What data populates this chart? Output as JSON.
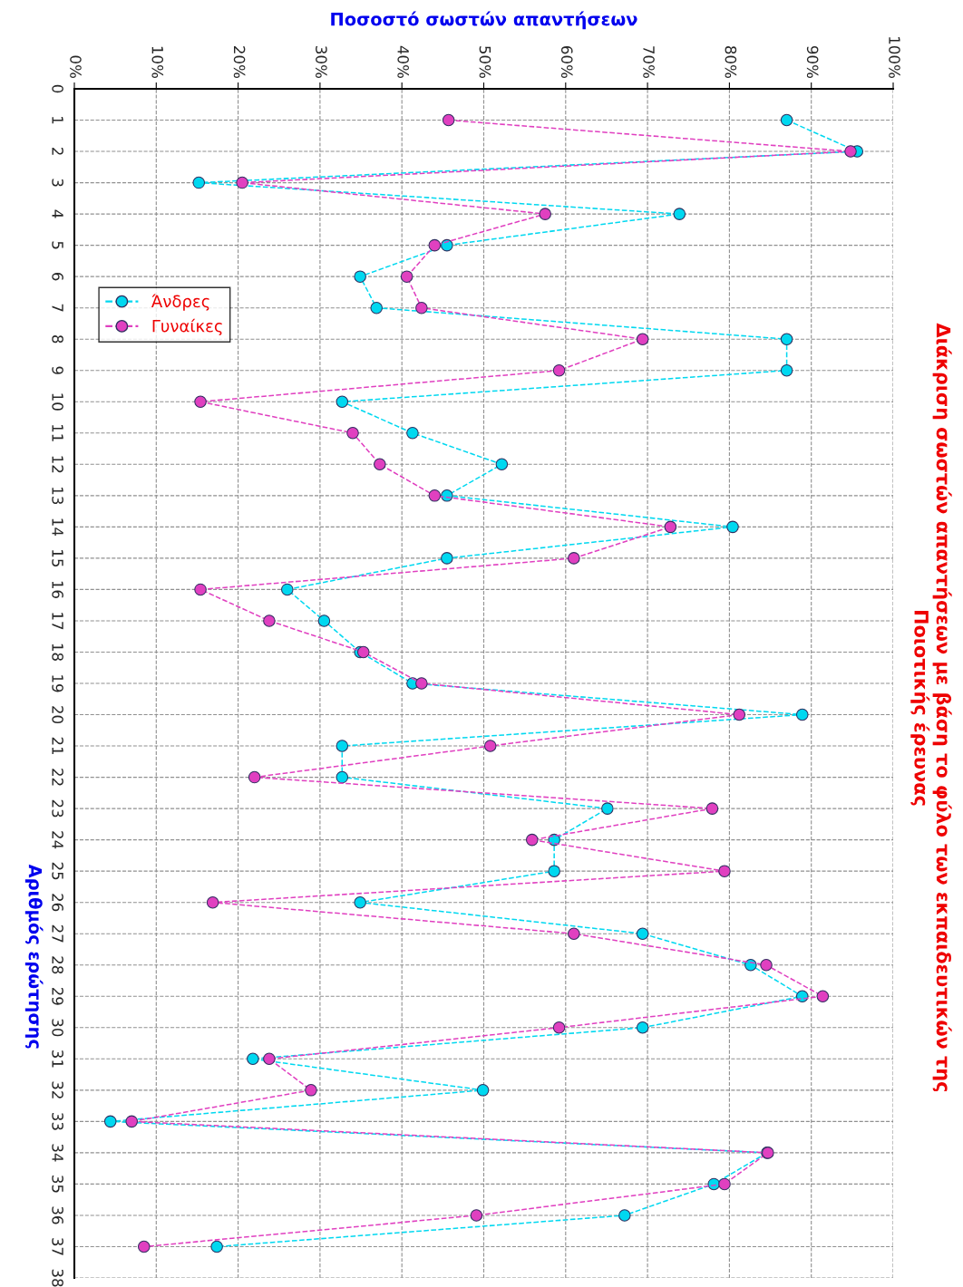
{
  "chart_data": {
    "type": "line",
    "orientation": "horizontal",
    "title": "Διάκριση σωστών απαντήσεων με βάση το φύλο των εκπαιδευτικών της\nΠοιοτικής έρευνας",
    "xlabel": "Ποσοστό σωστών απαντήσεων",
    "ylabel": "Αριθμός ερώτησης",
    "categories": [
      "0",
      "1",
      "2",
      "3",
      "4",
      "5",
      "6",
      "7",
      "8",
      "9",
      "10",
      "11",
      "12",
      "13",
      "14",
      "15",
      "16",
      "17",
      "18",
      "19",
      "20",
      "21",
      "22",
      "23",
      "24",
      "25",
      "26",
      "27",
      "28",
      "29",
      "30",
      "31",
      "32",
      "33",
      "34",
      "35",
      "36",
      "37",
      "38"
    ],
    "xlim": [
      0,
      100
    ],
    "xticks": [
      {
        "value": 0,
        "label": "0%"
      },
      {
        "value": 10,
        "label": "10%"
      },
      {
        "value": 20,
        "label": "20%"
      },
      {
        "value": 30,
        "label": "30%"
      },
      {
        "value": 40,
        "label": "40%"
      },
      {
        "value": 50,
        "label": "50%"
      },
      {
        "value": 60,
        "label": "60%"
      },
      {
        "value": 70,
        "label": "70%"
      },
      {
        "value": 80,
        "label": "80%"
      },
      {
        "value": 90,
        "label": "90%"
      },
      {
        "value": 100,
        "label": "100%"
      }
    ],
    "series": [
      {
        "name": "Άνδρες",
        "color": "#00d8f0",
        "values": [
          null,
          87,
          95.6,
          15.2,
          73.9,
          45.5,
          34.9,
          36.9,
          87,
          87,
          32.7,
          41.3,
          52.2,
          45.5,
          80.4,
          45.5,
          26,
          30.5,
          34.9,
          41.3,
          88.9,
          32.7,
          32.7,
          65.1,
          58.6,
          58.6,
          34.9,
          69.4,
          82.6,
          88.9,
          69.4,
          21.8,
          49.9,
          4.4,
          84.6,
          78.1,
          67.2,
          17.4,
          null
        ]
      },
      {
        "name": "Γυναίκες",
        "color": "#e040c0",
        "values": [
          null,
          45.7,
          94.8,
          20.5,
          57.5,
          44,
          40.6,
          42.4,
          69.4,
          59.2,
          15.4,
          34,
          37.3,
          44,
          72.8,
          61,
          15.4,
          23.8,
          35.3,
          42.4,
          81.2,
          50.8,
          22,
          77.9,
          55.9,
          79.4,
          16.9,
          61,
          84.5,
          91.4,
          59.2,
          23.8,
          28.9,
          7,
          84.7,
          79.4,
          49.1,
          8.5,
          null
        ]
      }
    ],
    "grid": true,
    "legend": "left",
    "marker": "circle",
    "line_style": "dashed"
  }
}
